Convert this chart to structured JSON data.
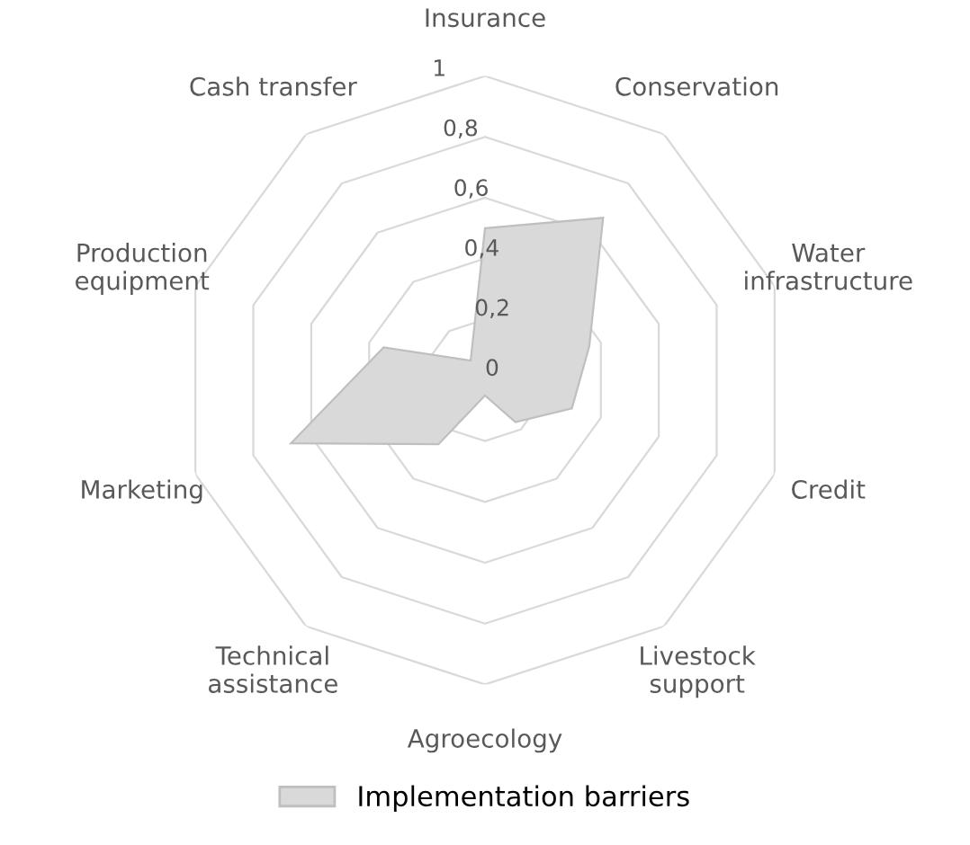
{
  "chart_data": {
    "type": "radar",
    "categories": [
      "Insurance",
      "Conservation",
      "Water\ninfrastructure",
      "Credit",
      "Livestock\nsupport",
      "Agroecology",
      "Technical\nassistance",
      "Marketing",
      "Production\nequipment",
      "Cash transfer"
    ],
    "series": [
      {
        "name": "Implementation barriers",
        "color": "#d9d9d9",
        "values": [
          0.5,
          0.66,
          0.36,
          0.3,
          0.17,
          0.05,
          0.26,
          0.67,
          0.35,
          0.08
        ]
      }
    ],
    "ylim": [
      0,
      1
    ],
    "yticks": [
      {
        "value": 0,
        "label": "0"
      },
      {
        "value": 0.2,
        "label": "0,2"
      },
      {
        "value": 0.4,
        "label": "0,4"
      },
      {
        "value": 0.6,
        "label": "0,6"
      },
      {
        "value": 0.8,
        "label": "0,8"
      },
      {
        "value": 1,
        "label": "1"
      }
    ],
    "legend": "bottom"
  }
}
